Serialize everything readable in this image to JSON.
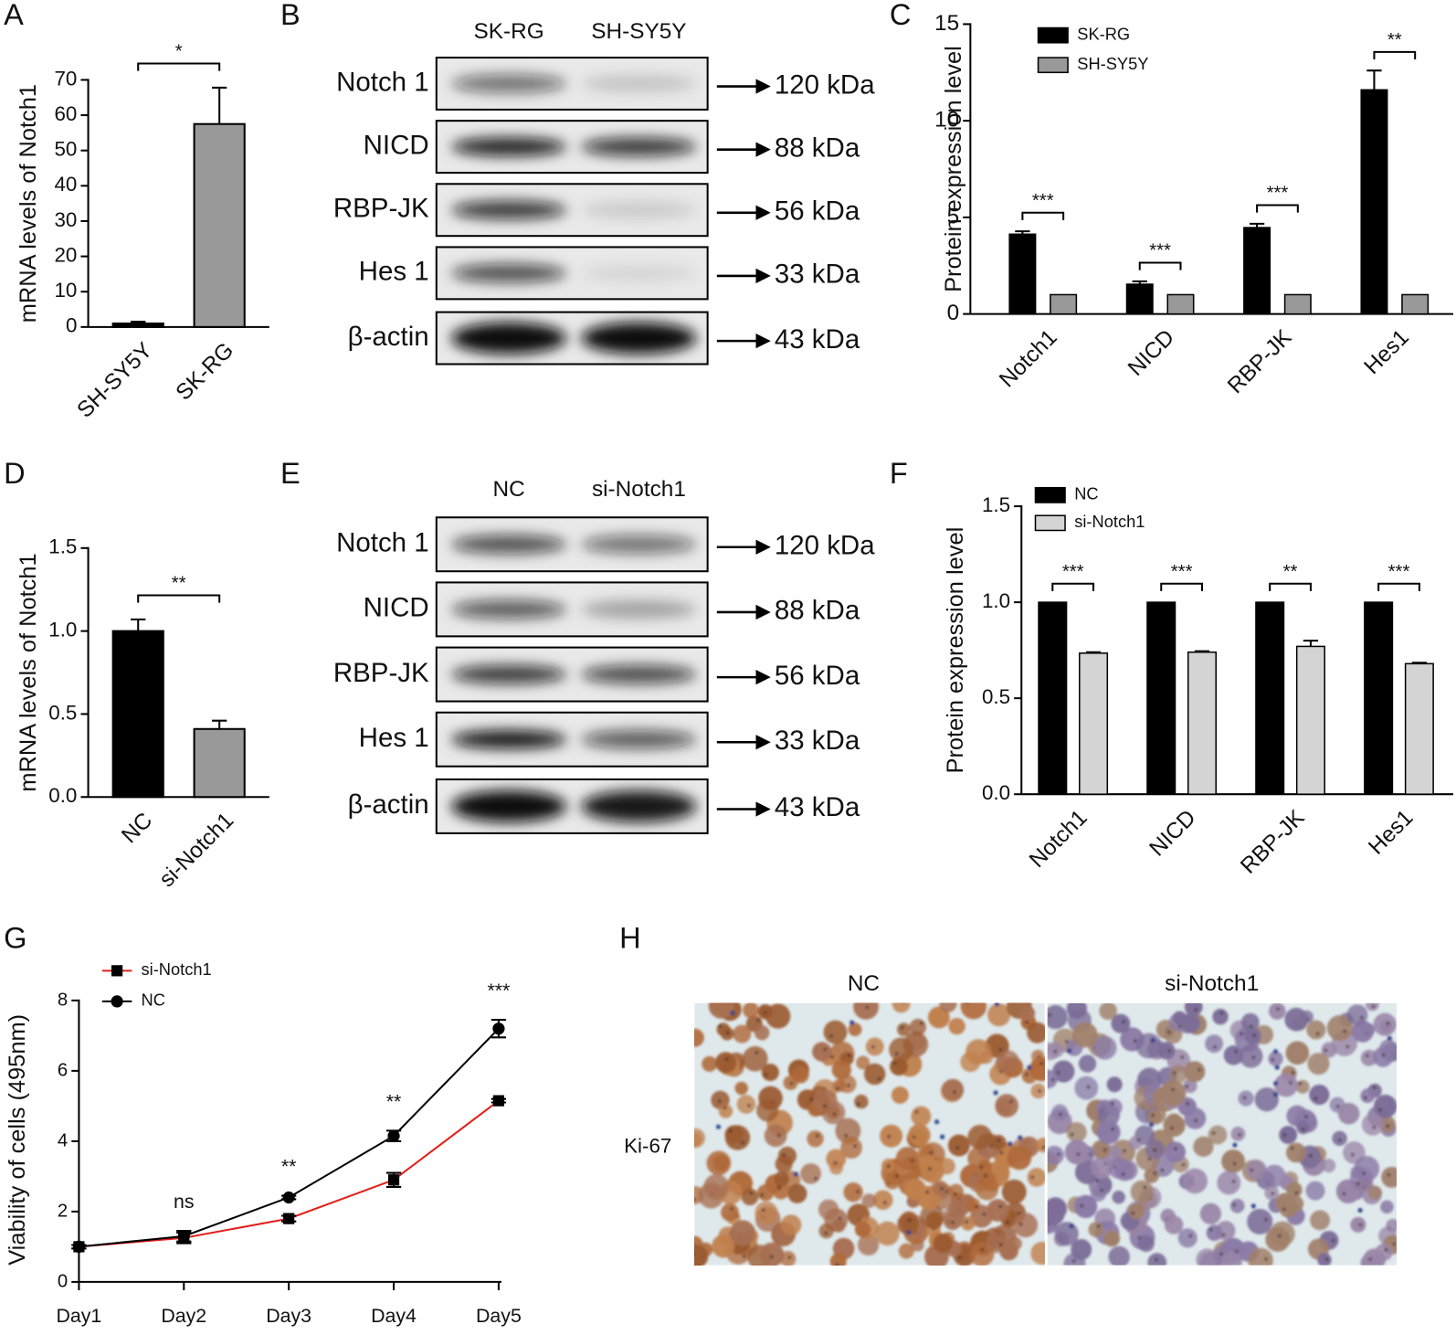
{
  "chart_data": [
    {
      "type": "bar",
      "panel": "A",
      "categories": [
        "SH-SY5Y",
        "SK-RG"
      ],
      "values": [
        1,
        57.5
      ],
      "errors": [
        0.5,
        10.3
      ],
      "colors": [
        "#000000",
        "#999999"
      ],
      "ylabel": "mRNA levels of Notch1",
      "ylim": [
        0,
        70
      ],
      "yticks": [
        0,
        10,
        20,
        30,
        40,
        50,
        60,
        70
      ],
      "significance": "*"
    },
    {
      "type": "bar",
      "panel": "C",
      "categories": [
        "Notch1",
        "NICD",
        "RBP-JK",
        "Hes1"
      ],
      "series": [
        {
          "name": "SK-RG",
          "color": "#000000",
          "values": [
            4.13,
            1.54,
            4.47,
            11.6
          ],
          "errors": [
            0.15,
            0.15,
            0.2,
            1.0
          ]
        },
        {
          "name": "SH-SY5Y",
          "color": "#999999",
          "values": [
            1,
            1,
            1,
            1
          ]
        }
      ],
      "ylabel": "Protein expression level",
      "ylim": [
        0,
        15
      ],
      "yticks": [
        0,
        5,
        10,
        15
      ],
      "significance": [
        "***",
        "***",
        "***",
        "**"
      ],
      "legend": "upper left"
    },
    {
      "type": "bar",
      "panel": "D",
      "categories": [
        "NC",
        "si-Notch1"
      ],
      "values": [
        1.0,
        0.41
      ],
      "errors": [
        0.07,
        0.05
      ],
      "colors": [
        "#000000",
        "#999999"
      ],
      "ylabel": "mRNA levels of Notch1",
      "ylim": [
        0,
        1.5
      ],
      "yticks": [
        {
          "value": 0,
          "label": "0.0"
        },
        {
          "value": 0.5,
          "label": "0.5"
        },
        {
          "value": 1,
          "label": "1.0"
        },
        {
          "value": 1.5,
          "label": "1.5"
        }
      ],
      "significance": "**"
    },
    {
      "type": "bar",
      "panel": "F",
      "categories": [
        "Notch1",
        "NICD",
        "RBP-JK",
        "Hes1"
      ],
      "series": [
        {
          "name": "NC",
          "color": "#000000",
          "values": [
            1,
            1,
            1,
            1
          ]
        },
        {
          "name": "si-Notch1",
          "color": "#d4d4d4",
          "values": [
            0.735,
            0.74,
            0.77,
            0.68
          ],
          "errors": [
            0.005,
            0.005,
            0.03,
            0.005
          ]
        }
      ],
      "ylabel": "Protein expression level",
      "ylim": [
        0,
        1.5
      ],
      "yticks": [
        {
          "value": 0,
          "label": "0.0"
        },
        {
          "value": 0.5,
          "label": "0.5"
        },
        {
          "value": 1,
          "label": "1.0"
        },
        {
          "value": 1.5,
          "label": "1.5"
        }
      ],
      "significance": [
        "***",
        "***",
        "**",
        "***"
      ],
      "legend": "upper left"
    },
    {
      "type": "line",
      "panel": "G",
      "categories": [
        "Day1",
        "Day2",
        "Day3",
        "Day4",
        "Day5"
      ],
      "series": [
        {
          "name": "si-Notch1",
          "color": "#e0201b",
          "marker": "square",
          "values": [
            1.0,
            1.25,
            1.8,
            2.9,
            5.15
          ],
          "errors": [
            0.05,
            0.15,
            0.08,
            0.2,
            0.05
          ]
        },
        {
          "name": "NC",
          "color": "#000000",
          "marker": "circle",
          "values": [
            1.0,
            1.3,
            2.4,
            4.15,
            7.2
          ],
          "errors": [
            0.05,
            0.15,
            0.05,
            0.15,
            0.25
          ]
        }
      ],
      "ylabel": "Viability of cells (495nm)",
      "ylim": [
        0,
        8
      ],
      "yticks": [
        0,
        2,
        4,
        6,
        8
      ],
      "significance": [
        null,
        "ns",
        "**",
        "**",
        "***"
      ],
      "legend": "upper left"
    }
  ],
  "blots": [
    {
      "panel": "B",
      "lanes": [
        "SK-RG",
        "SH-SY5Y"
      ],
      "rows": [
        {
          "protein": "Notch 1",
          "size": "120 kDa"
        },
        {
          "protein": "NICD",
          "size": "88 kDa"
        },
        {
          "protein": "RBP-JK",
          "size": "56 kDa"
        },
        {
          "protein": "Hes 1",
          "size": "33 kDa"
        },
        {
          "protein": "β-actin",
          "size": "43 kDa"
        }
      ]
    },
    {
      "panel": "E",
      "lanes": [
        "NC",
        "si-Notch1"
      ],
      "rows": [
        {
          "protein": "Notch 1",
          "size": "120 kDa"
        },
        {
          "protein": "NICD",
          "size": "88 kDa"
        },
        {
          "protein": "RBP-JK",
          "size": "56 kDa"
        },
        {
          "protein": "Hes 1",
          "size": "33 kDa"
        },
        {
          "protein": "β-actin",
          "size": "43 kDa"
        }
      ]
    }
  ],
  "micrograph": {
    "panel": "H",
    "columns": [
      "NC",
      "si-Notch1"
    ],
    "row_label": "Ki-67"
  }
}
